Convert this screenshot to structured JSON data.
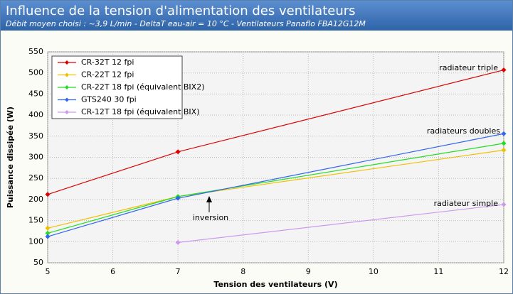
{
  "chart_data": {
    "type": "line",
    "title": "Influence de la tension d'alimentation des ventilateurs",
    "subtitle": "Débit moyen choisi : ~3,9 L/min - DeltaT eau-air = 10 °C - Ventilateurs Panaflo FBA12G12M",
    "x_label": "Tension des ventilateurs (V)",
    "y_label": "Puissance dissipée (W)",
    "x": [
      5,
      7,
      12
    ],
    "series": [
      {
        "name": "CR-32T 12 fpi",
        "color": "#dd0000",
        "values": [
          212,
          313,
          507
        ]
      },
      {
        "name": "CR-22T 12 fpi",
        "color": "#f0c000",
        "values": [
          132,
          207,
          317
        ]
      },
      {
        "name": "CR-22T 18 fpi (équivalent BIX2)",
        "color": "#22dd22",
        "values": [
          120,
          207,
          333
        ]
      },
      {
        "name": "GTS240 30 fpi",
        "color": "#3366ee",
        "values": [
          112,
          203,
          356
        ]
      },
      {
        "name": "CR-12T 18 fpi (équivalent BIX)",
        "color": "#cc99ee",
        "values": [
          null,
          98,
          188
        ]
      }
    ],
    "annotations": [
      "radiateur triple",
      "radiateurs doubles",
      "radiateur simple",
      "inversion"
    ],
    "xlim": [
      5,
      12
    ],
    "xticks": [
      5,
      6,
      7,
      8,
      9,
      10,
      11,
      12
    ],
    "ylim": [
      50,
      550
    ],
    "yticks": [
      50,
      100,
      150,
      200,
      250,
      300,
      350,
      400,
      450,
      500,
      550
    ],
    "grid": true
  }
}
